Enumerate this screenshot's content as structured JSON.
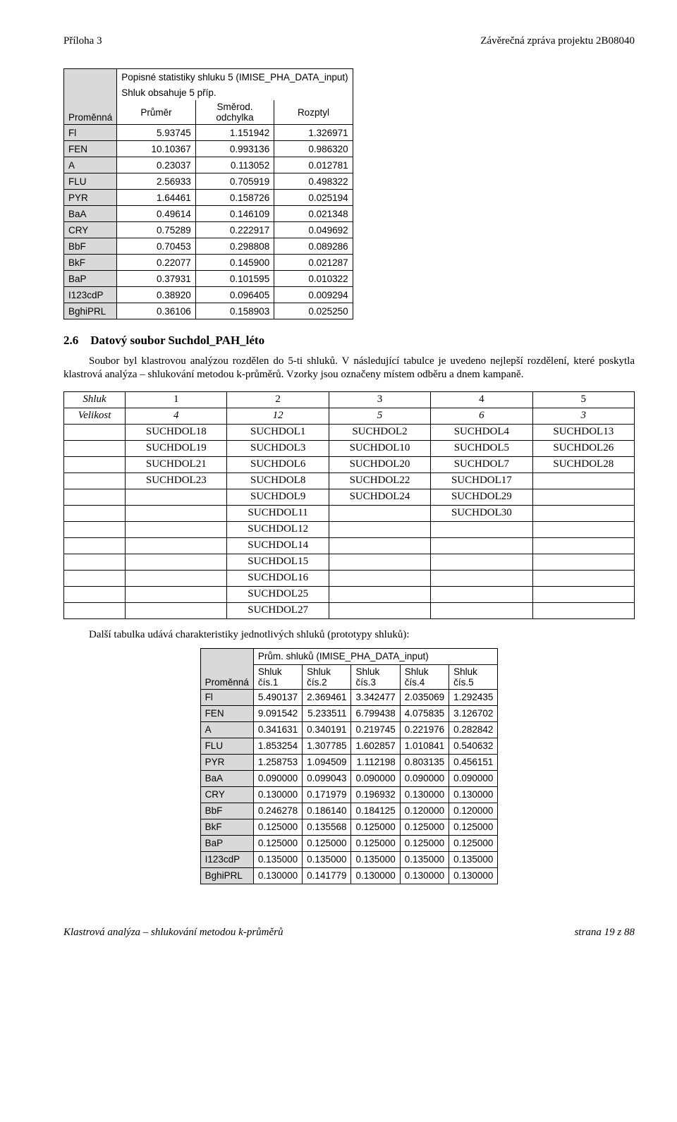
{
  "header": {
    "left": "Příloha 3",
    "right": "Závěrečná zpráva projektu 2B08040"
  },
  "stat": {
    "title1": "Popisné statistiky shluku 5 (IMISE_PHA_DATA_input)",
    "title2": "Shluk obsahuje 5 příp.",
    "col0": "Proměnná",
    "col1": "Průměr",
    "col2a": "Směrod.",
    "col2b": "odchylka",
    "col3": "Rozptyl",
    "rows": [
      {
        "n": "Fl",
        "a": "5.93745",
        "b": "1.151942",
        "c": "1.326971"
      },
      {
        "n": "FEN",
        "a": "10.10367",
        "b": "0.993136",
        "c": "0.986320"
      },
      {
        "n": "A",
        "a": "0.23037",
        "b": "0.113052",
        "c": "0.012781"
      },
      {
        "n": "FLU",
        "a": "2.56933",
        "b": "0.705919",
        "c": "0.498322"
      },
      {
        "n": "PYR",
        "a": "1.64461",
        "b": "0.158726",
        "c": "0.025194"
      },
      {
        "n": "BaA",
        "a": "0.49614",
        "b": "0.146109",
        "c": "0.021348"
      },
      {
        "n": "CRY",
        "a": "0.75289",
        "b": "0.222917",
        "c": "0.049692"
      },
      {
        "n": "BbF",
        "a": "0.70453",
        "b": "0.298808",
        "c": "0.089286"
      },
      {
        "n": "BkF",
        "a": "0.22077",
        "b": "0.145900",
        "c": "0.021287"
      },
      {
        "n": "BaP",
        "a": "0.37931",
        "b": "0.101595",
        "c": "0.010322"
      },
      {
        "n": "I123cdP",
        "a": "0.38920",
        "b": "0.096405",
        "c": "0.009294"
      },
      {
        "n": "BghiPRL",
        "a": "0.36106",
        "b": "0.158903",
        "c": "0.025250"
      }
    ]
  },
  "section": {
    "number": "2.6",
    "title": "Datový soubor Suchdol_PAH_léto",
    "para": "Soubor byl klastrovou analýzou rozdělen do 5-ti shluků. V následující tabulce je uvedeno nejlepší rozdělení, které poskytla klastrová analýza – shlukování metodou k-průměrů. Vzorky jsou označeny místem odběru a dnem kampaně."
  },
  "shluk": {
    "row_shluk": "Shluk",
    "row_velikost": "Velikost",
    "counts": [
      "1",
      "2",
      "3",
      "4",
      "5"
    ],
    "sizes": [
      "4",
      "12",
      "5",
      "6",
      "3"
    ],
    "cells": [
      [
        "SUCHDOL18",
        "SUCHDOL1",
        "SUCHDOL2",
        "SUCHDOL4",
        "SUCHDOL13"
      ],
      [
        "SUCHDOL19",
        "SUCHDOL3",
        "SUCHDOL10",
        "SUCHDOL5",
        "SUCHDOL26"
      ],
      [
        "SUCHDOL21",
        "SUCHDOL6",
        "SUCHDOL20",
        "SUCHDOL7",
        "SUCHDOL28"
      ],
      [
        "SUCHDOL23",
        "SUCHDOL8",
        "SUCHDOL22",
        "SUCHDOL17",
        ""
      ],
      [
        "",
        "SUCHDOL9",
        "SUCHDOL24",
        "SUCHDOL29",
        ""
      ],
      [
        "",
        "SUCHDOL11",
        "",
        "SUCHDOL30",
        ""
      ],
      [
        "",
        "SUCHDOL12",
        "",
        "",
        ""
      ],
      [
        "",
        "SUCHDOL14",
        "",
        "",
        ""
      ],
      [
        "",
        "SUCHDOL15",
        "",
        "",
        ""
      ],
      [
        "",
        "SUCHDOL16",
        "",
        "",
        ""
      ],
      [
        "",
        "SUCHDOL25",
        "",
        "",
        ""
      ],
      [
        "",
        "SUCHDOL27",
        "",
        "",
        ""
      ]
    ]
  },
  "proto_note": "Další tabulka udává  charakteristiky jednotlivých shluků (prototypy shluků):",
  "prum": {
    "title": "Prům. shluků (IMISE_PHA_DATA_input)",
    "col0": "Proměnná",
    "hdrs_top": [
      "Shluk",
      "Shluk",
      "Shluk",
      "Shluk",
      "Shluk"
    ],
    "hdrs_bot": [
      "čís.1",
      "čís.2",
      "čís.3",
      "čís.4",
      "čís.5"
    ],
    "rows": [
      {
        "n": "Fl",
        "v": [
          "5.490137",
          "2.369461",
          "3.342477",
          "2.035069",
          "1.292435"
        ]
      },
      {
        "n": "FEN",
        "v": [
          "9.091542",
          "5.233511",
          "6.799438",
          "4.075835",
          "3.126702"
        ]
      },
      {
        "n": "A",
        "v": [
          "0.341631",
          "0.340191",
          "0.219745",
          "0.221976",
          "0.282842"
        ]
      },
      {
        "n": "FLU",
        "v": [
          "1.853254",
          "1.307785",
          "1.602857",
          "1.010841",
          "0.540632"
        ]
      },
      {
        "n": "PYR",
        "v": [
          "1.258753",
          "1.094509",
          "1.112198",
          "0.803135",
          "0.456151"
        ]
      },
      {
        "n": "BaA",
        "v": [
          "0.090000",
          "0.099043",
          "0.090000",
          "0.090000",
          "0.090000"
        ]
      },
      {
        "n": "CRY",
        "v": [
          "0.130000",
          "0.171979",
          "0.196932",
          "0.130000",
          "0.130000"
        ]
      },
      {
        "n": "BbF",
        "v": [
          "0.246278",
          "0.186140",
          "0.184125",
          "0.120000",
          "0.120000"
        ]
      },
      {
        "n": "BkF",
        "v": [
          "0.125000",
          "0.135568",
          "0.125000",
          "0.125000",
          "0.125000"
        ]
      },
      {
        "n": "BaP",
        "v": [
          "0.125000",
          "0.125000",
          "0.125000",
          "0.125000",
          "0.125000"
        ]
      },
      {
        "n": "I123cdP",
        "v": [
          "0.135000",
          "0.135000",
          "0.135000",
          "0.135000",
          "0.135000"
        ]
      },
      {
        "n": "BghiPRL",
        "v": [
          "0.130000",
          "0.141779",
          "0.130000",
          "0.130000",
          "0.130000"
        ]
      }
    ]
  },
  "footer": {
    "left": "Klastrová analýza – shlukování metodou k-průměrů",
    "right": "strana 19 z 88"
  }
}
